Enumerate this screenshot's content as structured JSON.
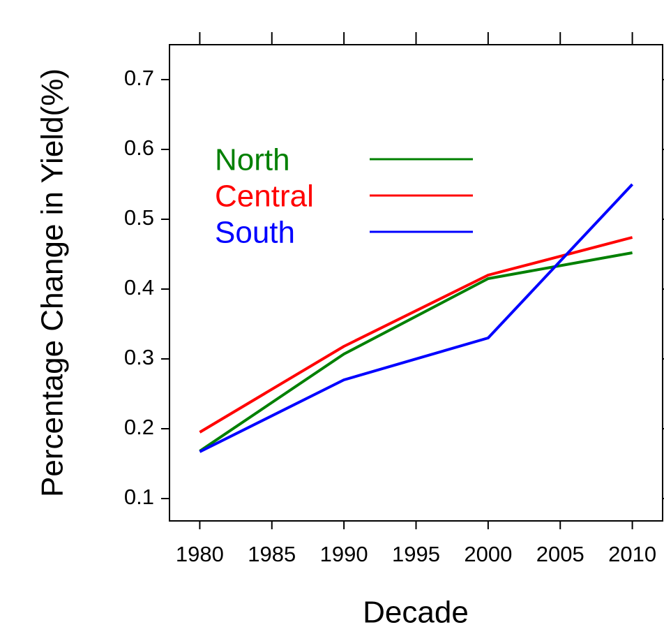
{
  "chart_data": {
    "type": "line",
    "x_label": "Decade",
    "y_label": "Percentage Change in Yield(%)",
    "x": [
      1980,
      1990,
      2000,
      2010
    ],
    "series": [
      {
        "name": "North",
        "color": "#008000",
        "values": [
          0.168,
          0.307,
          0.415,
          0.452
        ]
      },
      {
        "name": "Central",
        "color": "#ff0000",
        "values": [
          0.195,
          0.318,
          0.42,
          0.474
        ]
      },
      {
        "name": "South",
        "color": "#0000ff",
        "values": [
          0.167,
          0.27,
          0.33,
          0.55
        ]
      }
    ],
    "xlim": [
      1977.9,
      2012.1
    ],
    "ylim": [
      0.068,
      0.75
    ],
    "xticks": [
      1980,
      1985,
      1990,
      1995,
      2000,
      2005,
      2010
    ],
    "yticks": [
      0.1,
      0.2,
      0.3,
      0.4,
      0.5,
      0.6,
      0.7
    ],
    "legend": "top-left",
    "grid": false
  }
}
